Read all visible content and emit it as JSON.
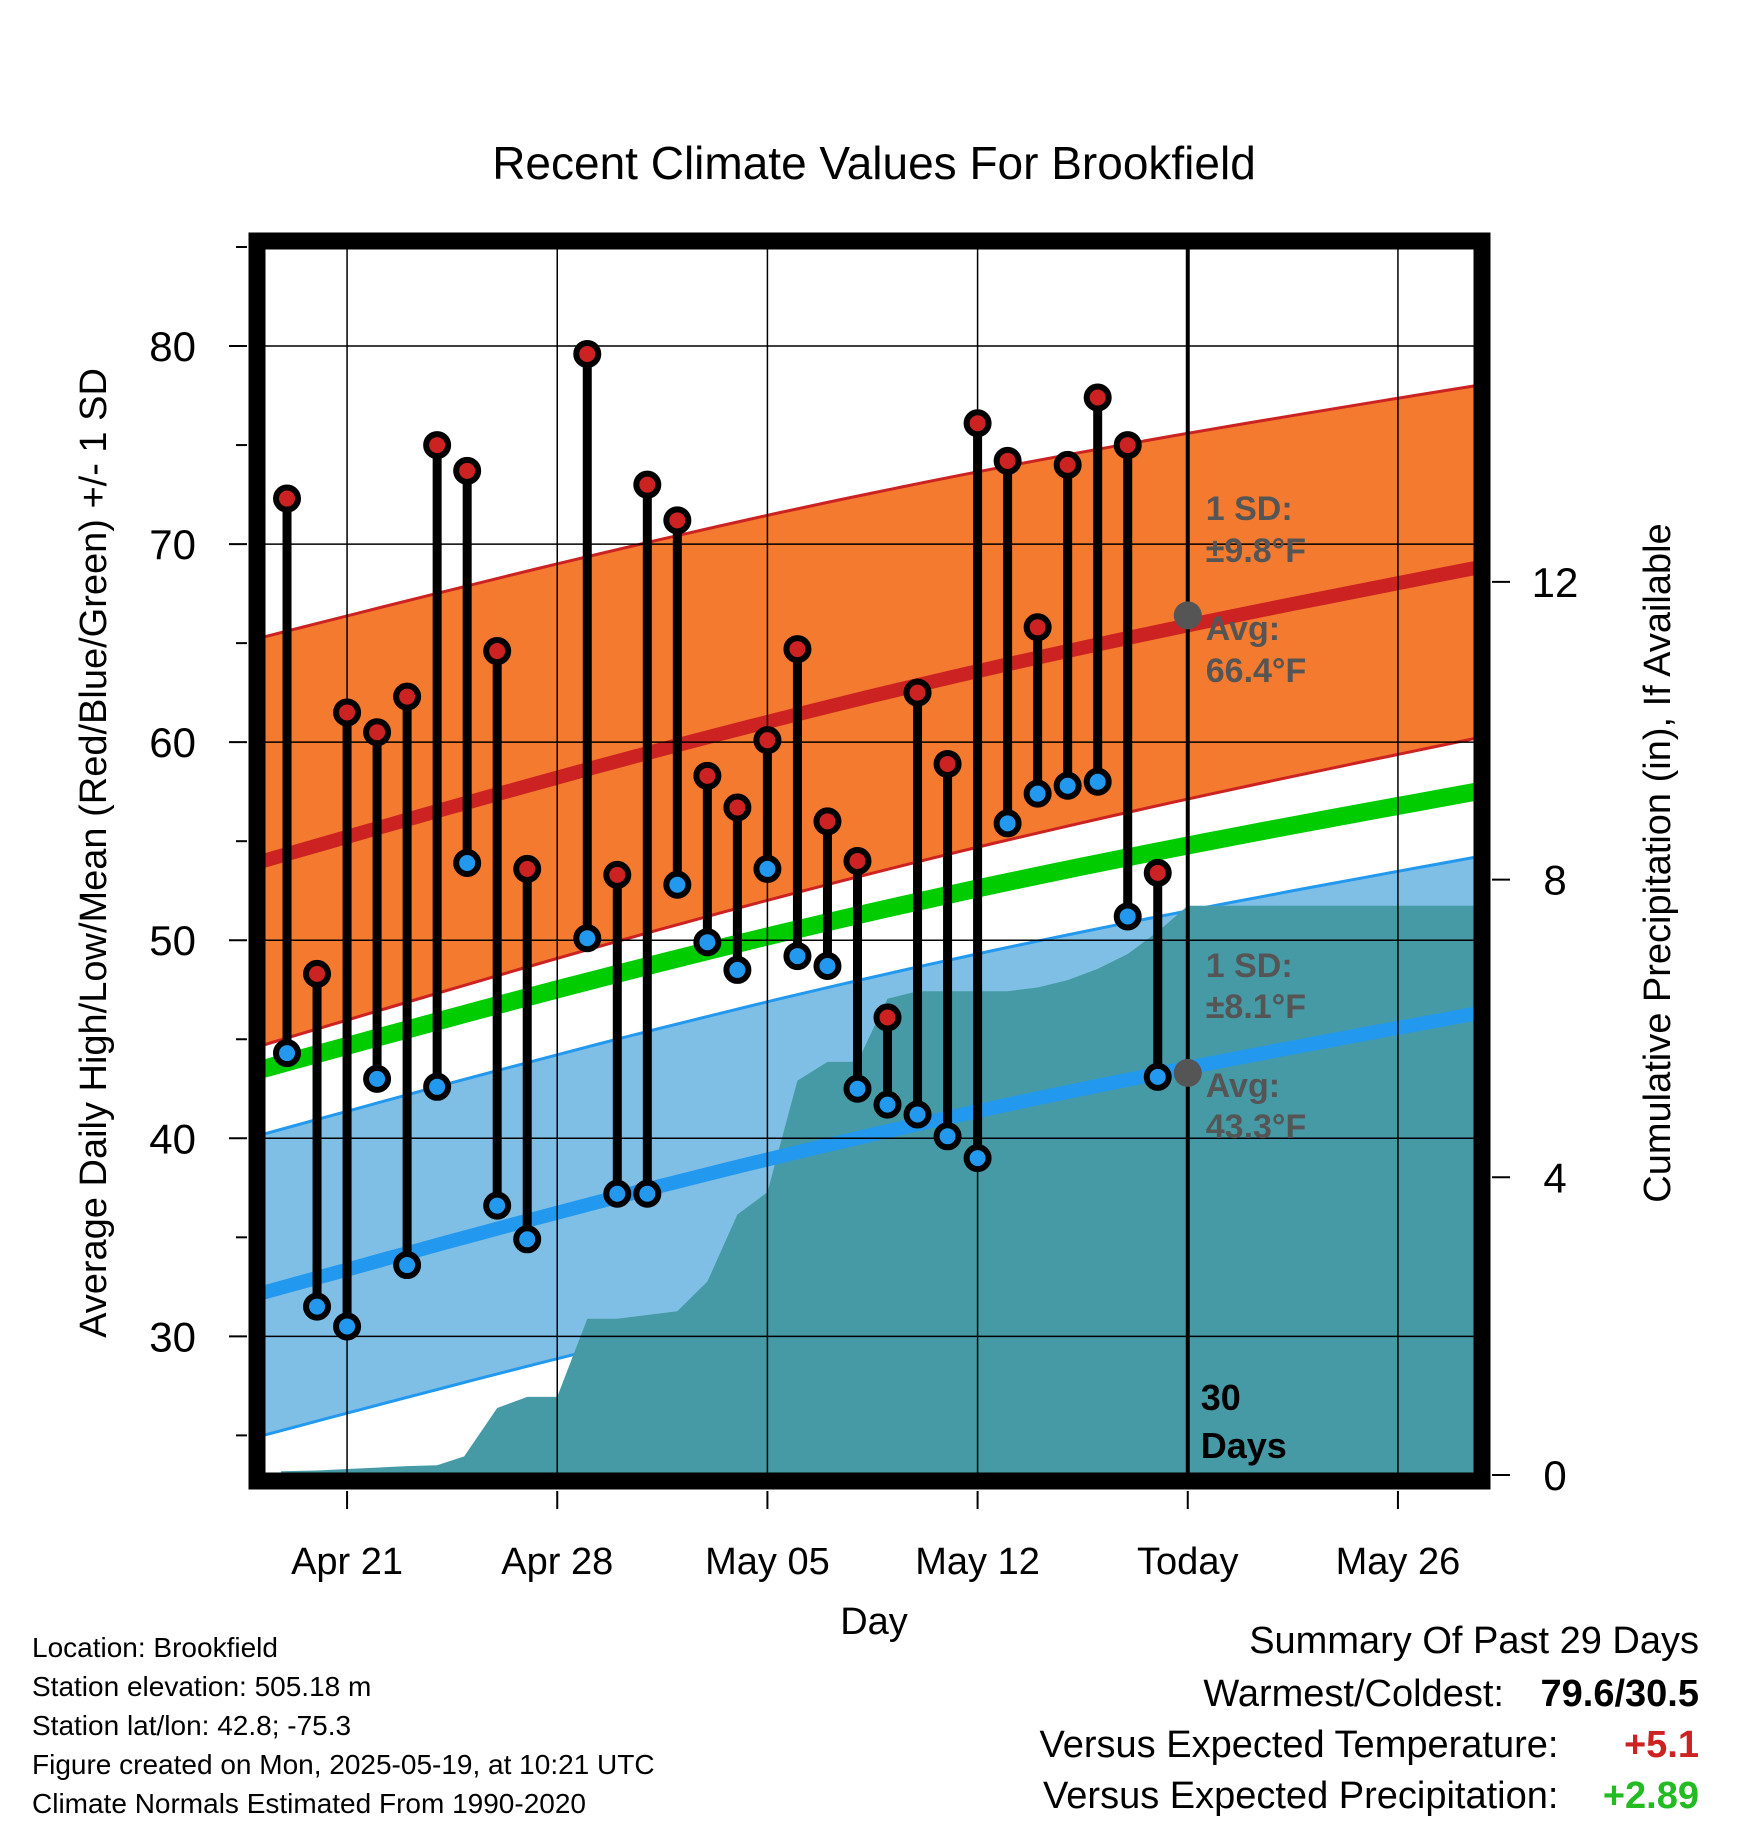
{
  "chart_data": {
    "type": "line",
    "title": "Recent Climate Values For Brookfield",
    "xlabel": "Day",
    "ylabel": "Average Daily High/Low/Mean (Red/Blue/Green) +/- 1 SD",
    "y2label": "Cumulative Precipitation (in), If Available",
    "x_tick_labels": [
      "Apr 21",
      "Apr 28",
      "May 05",
      "May 12",
      "Today",
      "May 26"
    ],
    "x_tick_days": [
      0,
      7,
      14,
      21,
      28,
      35
    ],
    "xlim_days": [
      -2.8,
      37.6
    ],
    "ylim": [
      23,
      85
    ],
    "y_ticks": [
      30,
      40,
      50,
      60,
      70,
      80
    ],
    "y2lim": [
      0,
      16.5
    ],
    "y2_ticks": [
      0,
      4,
      8,
      12
    ],
    "grid": true,
    "today_day": 28,
    "today_label": [
      "30",
      "Days"
    ],
    "normal_high": {
      "days": [
        -2.8,
        37.6
      ],
      "mean": [
        54.0,
        68.8
      ],
      "upper": [
        65.3,
        78.0
      ],
      "lower": [
        44.7,
        60.2
      ],
      "today_avg": 66.4,
      "sd_text": "1 SD:",
      "sd_value": "±9.8°F",
      "avg_text": "Avg:",
      "avg_value": "66.4°F"
    },
    "normal_low": {
      "days": [
        -2.8,
        37.6
      ],
      "mean": [
        32.2,
        46.3
      ],
      "upper": [
        40.2,
        54.2
      ],
      "lower": [
        25.0,
        38.4
      ],
      "today_avg": 43.3,
      "sd_text": "1 SD:",
      "sd_value": "±8.1°F",
      "avg_text": "Avg:",
      "avg_value": "43.3°F"
    },
    "normal_mean": {
      "days": [
        -2.8,
        37.6
      ],
      "values": [
        43.5,
        57.5
      ]
    },
    "daily": [
      {
        "day": -2,
        "high": 72.3,
        "low": 44.3
      },
      {
        "day": -1,
        "high": 48.3,
        "low": 31.5
      },
      {
        "day": 0,
        "high": 61.5,
        "low": 30.5
      },
      {
        "day": 1,
        "high": 60.5,
        "low": 43.0
      },
      {
        "day": 2,
        "high": 62.3,
        "low": 33.6
      },
      {
        "day": 3,
        "high": 75.0,
        "low": 42.6
      },
      {
        "day": 4,
        "high": 73.7,
        "low": 53.9
      },
      {
        "day": 5,
        "high": 64.6,
        "low": 36.6
      },
      {
        "day": 6,
        "high": 53.6,
        "low": 34.9
      },
      {
        "day": 8,
        "high": 79.6,
        "low": 50.1
      },
      {
        "day": 9,
        "high": 53.3,
        "low": 37.2
      },
      {
        "day": 10,
        "high": 73.0,
        "low": 37.2
      },
      {
        "day": 11,
        "high": 71.2,
        "low": 52.8
      },
      {
        "day": 12,
        "high": 58.3,
        "low": 49.9
      },
      {
        "day": 13,
        "high": 56.7,
        "low": 48.5
      },
      {
        "day": 14,
        "high": 60.1,
        "low": 53.6
      },
      {
        "day": 15,
        "high": 64.7,
        "low": 49.2
      },
      {
        "day": 16,
        "high": 56.0,
        "low": 48.7
      },
      {
        "day": 17,
        "high": 54.0,
        "low": 42.5
      },
      {
        "day": 18,
        "high": 46.1,
        "low": 41.7
      },
      {
        "day": 19,
        "high": 62.5,
        "low": 41.2
      },
      {
        "day": 20,
        "high": 58.9,
        "low": 40.1
      },
      {
        "day": 21,
        "high": 76.1,
        "low": 39.0
      },
      {
        "day": 22,
        "high": 74.2,
        "low": 55.9
      },
      {
        "day": 23,
        "high": 65.8,
        "low": 57.4
      },
      {
        "day": 24,
        "high": 74.0,
        "low": 57.8
      },
      {
        "day": 25,
        "high": 77.4,
        "low": 58.0
      },
      {
        "day": 26,
        "high": 75.0,
        "low": 51.2
      },
      {
        "day": 27,
        "high": 53.4,
        "low": 43.1
      }
    ],
    "cumulative_precip": {
      "days": [
        -2.2,
        -1,
        0,
        1,
        2,
        3,
        3.9,
        5,
        6,
        7,
        8,
        9,
        10,
        11,
        12,
        13,
        14,
        15,
        16,
        17,
        18,
        19,
        20,
        21,
        22,
        23,
        24,
        25,
        26,
        27,
        28,
        37.6
      ],
      "values": [
        0.05,
        0.06,
        0.08,
        0.1,
        0.12,
        0.13,
        0.25,
        0.9,
        1.05,
        1.05,
        2.1,
        2.1,
        2.15,
        2.2,
        2.6,
        3.5,
        3.8,
        5.3,
        5.55,
        5.55,
        6.4,
        6.5,
        6.5,
        6.5,
        6.5,
        6.55,
        6.65,
        6.8,
        7.0,
        7.3,
        7.65,
        7.65
      ]
    },
    "colors": {
      "high": "#cc2222",
      "low": "#2299ee",
      "mean": "#00cc00",
      "high_band": "#f37a2e",
      "low_band": "#80bfe5",
      "precip": "#469aa5",
      "annotation": "#555555",
      "today_marker": "#555555"
    }
  },
  "footer": {
    "location": "Location: Brookfield",
    "elevation": "Station elevation: 505.18 m",
    "latlon": "Station lat/lon: 42.8; -75.3",
    "created": "Figure created on Mon, 2025-05-19, at 10:21 UTC",
    "normals": "Climate Normals Estimated From 1990-2020"
  },
  "summary": {
    "title": "Summary Of Past 29 Days",
    "warmest_label": "Warmest/Coldest:",
    "warmest_value": "79.6/30.5",
    "temp_label": "Versus Expected Temperature:",
    "temp_value": "+5.1",
    "temp_color": "#cc2222",
    "precip_label": "Versus Expected Precipitation:",
    "precip_value": "+2.89",
    "precip_color": "#22bb22"
  }
}
